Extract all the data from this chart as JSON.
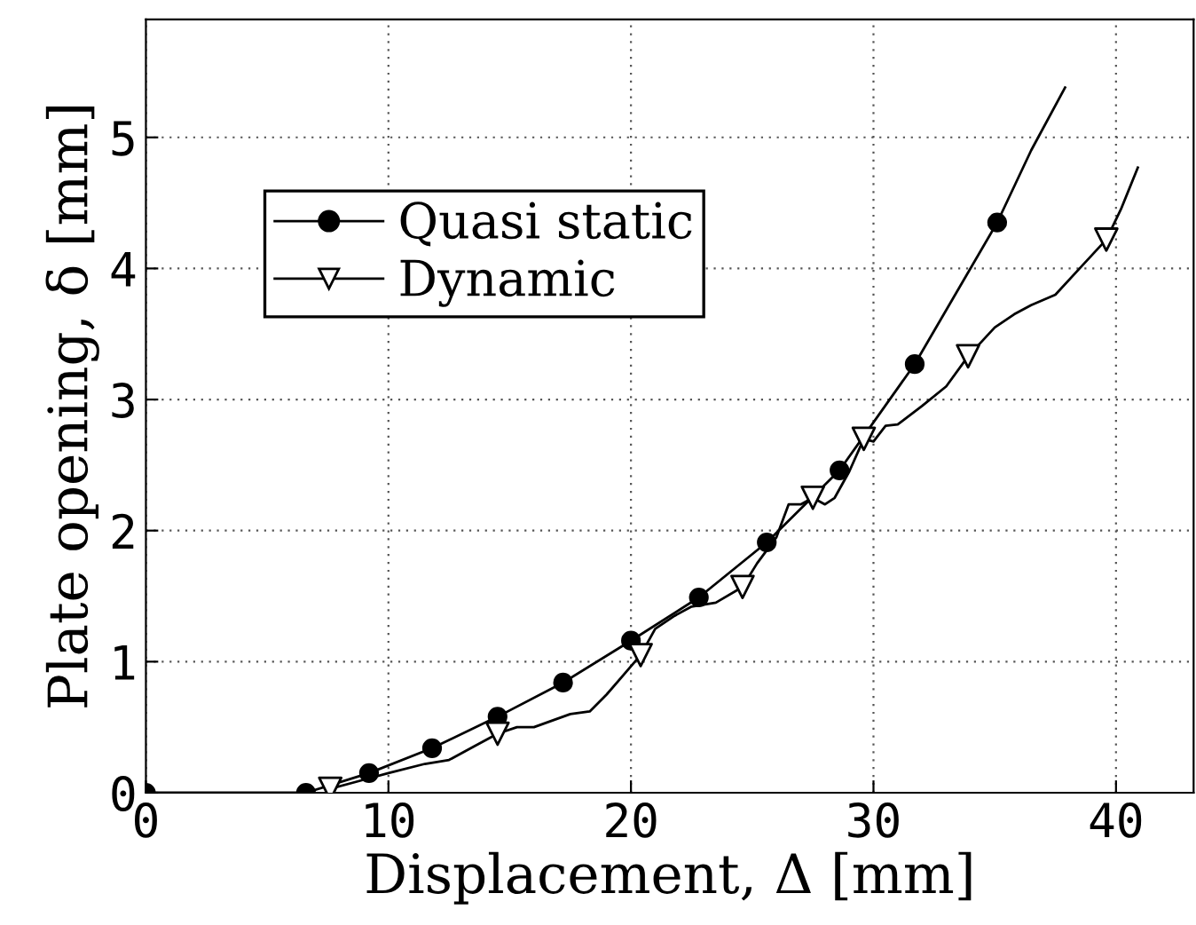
{
  "chart_data": {
    "type": "line",
    "xlabel": "Displacement, Δ [mm]",
    "ylabel": "Plate opening, δ [mm]",
    "xlim": [
      0,
      43.2
    ],
    "ylim": [
      0,
      5.9
    ],
    "xticks": [
      0,
      10,
      20,
      30,
      40
    ],
    "yticks": [
      0,
      1,
      2,
      3,
      4,
      5
    ],
    "grid": true,
    "legend": "upper left",
    "series": [
      {
        "name": "Quasi static",
        "marker": "circle",
        "color": "#000000",
        "x": [
          0,
          6.6,
          9.2,
          11.8,
          14.5,
          17.2,
          20,
          22.8,
          25.6,
          28.6,
          31.7,
          35.1
        ],
        "values": [
          0,
          0,
          0.15,
          0.34,
          0.58,
          0.84,
          1.16,
          1.49,
          1.91,
          2.46,
          3.27,
          4.35
        ]
      },
      {
        "marker": "none",
        "color": "#000000",
        "x": [
          35.1,
          36.5,
          37.9
        ],
        "values": [
          4.35,
          4.9,
          5.38
        ]
      },
      {
        "marker": "none",
        "color": "#000000",
        "x": [
          7.6,
          9,
          10,
          11.5,
          12.5,
          13.5,
          14.5,
          15.3,
          16,
          17.5,
          18.3,
          19,
          20.4,
          21,
          21.8,
          22.5,
          23.5,
          24.6,
          25.2,
          26,
          26.5,
          27,
          27.5,
          28,
          28.4,
          29,
          29.6,
          30,
          30.5,
          31,
          32,
          33,
          33.9,
          35,
          35.8,
          36.5,
          37.5,
          38.5,
          39.6,
          40.2,
          40.9
        ],
        "values": [
          0.03,
          0.1,
          0.15,
          0.22,
          0.25,
          0.35,
          0.45,
          0.5,
          0.5,
          0.6,
          0.62,
          0.75,
          1.05,
          1.25,
          1.35,
          1.42,
          1.45,
          1.57,
          1.75,
          1.95,
          2.2,
          2.2,
          2.25,
          2.2,
          2.25,
          2.45,
          2.7,
          2.68,
          2.8,
          2.81,
          2.95,
          3.1,
          3.33,
          3.55,
          3.65,
          3.72,
          3.8,
          4.0,
          4.22,
          4.45,
          4.77
        ]
      },
      {
        "name": "Dynamic",
        "type": "scatter",
        "marker": "triangle",
        "color": "#000000",
        "x": [
          7.6,
          14.5,
          20.4,
          24.6,
          27.5,
          29.6,
          33.9,
          39.6
        ],
        "values": [
          0.03,
          0.45,
          1.05,
          1.57,
          2.25,
          2.7,
          3.33,
          4.22
        ]
      }
    ]
  }
}
